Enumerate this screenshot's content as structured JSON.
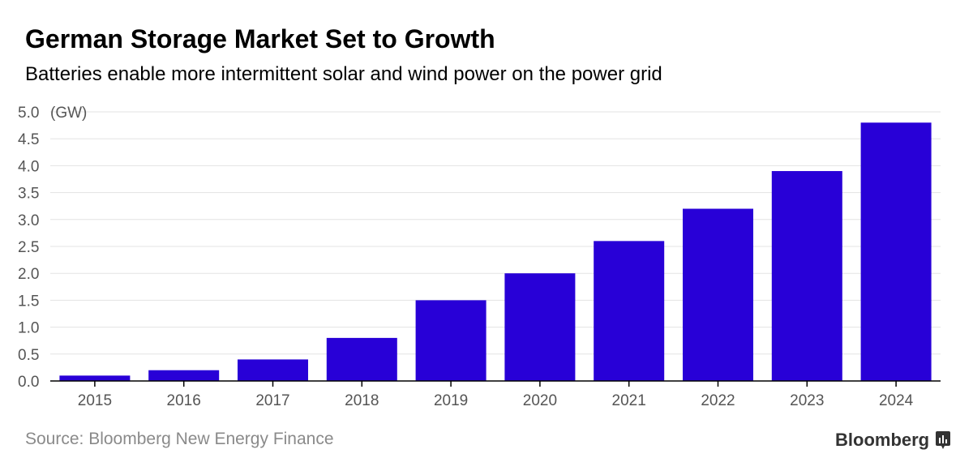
{
  "title": "German Storage Market Set to Growth",
  "subtitle": "Batteries enable more intermittent solar and wind power on the power grid",
  "source": "Source: Bloomberg New Energy Finance",
  "logo": "Bloomberg",
  "chart_data": {
    "type": "bar",
    "title": "German Storage Market Set to Growth",
    "subtitle": "Batteries enable more intermittent solar and wind power on the power grid",
    "ylabel": "(GW)",
    "xlabel": "",
    "categories": [
      "2015",
      "2016",
      "2017",
      "2018",
      "2019",
      "2020",
      "2021",
      "2022",
      "2023",
      "2024"
    ],
    "values": [
      0.1,
      0.2,
      0.4,
      0.8,
      1.5,
      2.0,
      2.6,
      3.2,
      3.9,
      4.8
    ],
    "ylim": [
      0,
      5
    ],
    "yticks": [
      "0.0",
      "0.5",
      "1.0",
      "1.5",
      "2.0",
      "2.5",
      "3.0",
      "3.5",
      "4.0",
      "4.5",
      "5.0"
    ],
    "grid": true,
    "bar_color": "#2800d7"
  }
}
